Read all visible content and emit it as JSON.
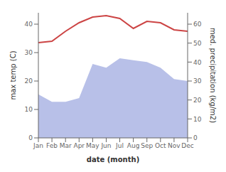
{
  "chart_data": {
    "type": "line",
    "categories": [
      "Jan",
      "Feb",
      "Mar",
      "Apr",
      "May",
      "Jun",
      "Jul",
      "Aug",
      "Sep",
      "Oct",
      "Nov",
      "Dec"
    ],
    "xlabel": "date (month)",
    "ylabel": "max temp (C)",
    "y2label": "med. precipitation (kg/m2)",
    "ylim": [
      0,
      44
    ],
    "yticks": [
      0,
      10,
      20,
      30,
      40
    ],
    "y2lim": [
      0,
      66
    ],
    "y2ticks": [
      0,
      10,
      20,
      30,
      40,
      50,
      60
    ],
    "series": [
      {
        "type": "area",
        "axis": "y2",
        "color": "#b8c0e8",
        "values": [
          23,
          19,
          19,
          21,
          39,
          37,
          42,
          41,
          40,
          37,
          31,
          30
        ]
      },
      {
        "type": "line",
        "color": "#cc4444",
        "values": [
          33.5,
          34.0,
          37.5,
          40.5,
          42.5,
          43.0,
          42.0,
          38.5,
          41.0,
          40.5,
          38.0,
          37.5
        ]
      }
    ]
  }
}
